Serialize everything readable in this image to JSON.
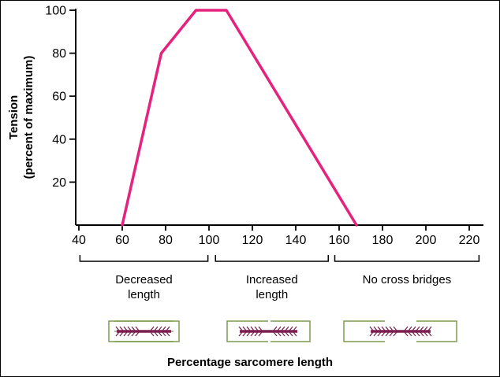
{
  "chart_data": {
    "type": "line",
    "title": "",
    "ylabel": [
      "Tension",
      "(percent of maximum)"
    ],
    "xlabel": "Percentage sarcomere length",
    "x_ticks": [
      40,
      60,
      80,
      100,
      120,
      140,
      160,
      180,
      200,
      220
    ],
    "y_ticks": [
      20,
      40,
      60,
      80,
      100
    ],
    "xlim": [
      40,
      227
    ],
    "ylim": [
      0,
      100
    ],
    "grid": false,
    "legend": false,
    "series": [
      {
        "name": "tension-curve",
        "color": "#e5237e",
        "points": [
          [
            60,
            0
          ],
          [
            78,
            80
          ],
          [
            94,
            100
          ],
          [
            108,
            100
          ],
          [
            168,
            0
          ]
        ]
      }
    ],
    "regions": [
      {
        "label": [
          "Decreased",
          "length"
        ],
        "x_start": 40.5,
        "x_end": 99.5
      },
      {
        "label": [
          "Increased",
          "length"
        ],
        "x_start": 103,
        "x_end": 155
      },
      {
        "label": [
          "No cross bridges"
        ],
        "x_start": 158,
        "x_end": 224.5
      }
    ],
    "diagrams": [
      {
        "name": "sarcomere-decreased-length-icon"
      },
      {
        "name": "sarcomere-increased-length-icon"
      },
      {
        "name": "sarcomere-no-cross-bridges-icon"
      }
    ]
  },
  "colors": {
    "curve": "#e5237e",
    "axis": "#000000",
    "sarcomere_actin": "#7c9a50",
    "sarcomere_myosin": "#7a1f4f",
    "background": "#ffffff"
  }
}
